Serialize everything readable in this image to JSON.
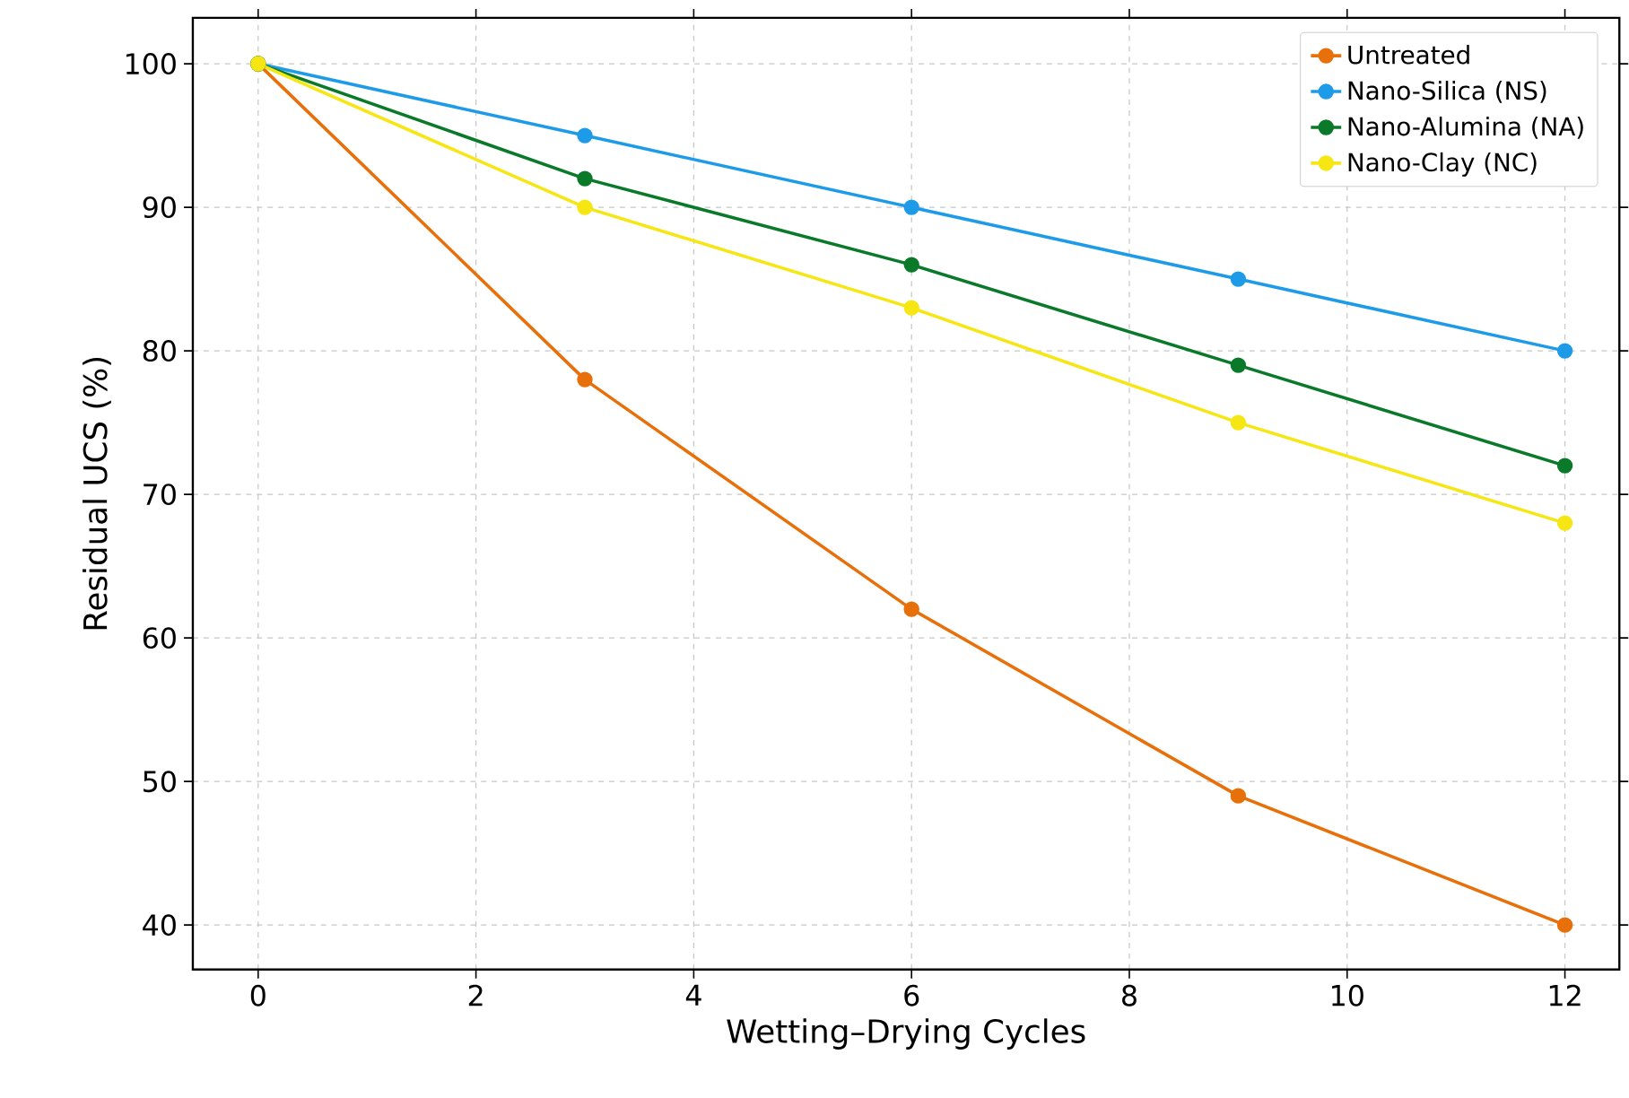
{
  "chart_data": {
    "type": "line",
    "xlabel": "Wetting–Drying Cycles",
    "ylabel": "Residual UCS (%)",
    "x": [
      0,
      3,
      6,
      9,
      12
    ],
    "series": [
      {
        "name": "Untreated",
        "color": "#e8700a",
        "values": [
          100,
          78,
          62,
          49,
          40
        ]
      },
      {
        "name": "Nano-Silica (NS)",
        "color": "#1e9be8",
        "values": [
          100,
          95,
          90,
          85,
          80
        ]
      },
      {
        "name": "Nano-Alumina (NA)",
        "color": "#0a7a2a",
        "values": [
          100,
          92,
          86,
          79,
          72
        ]
      },
      {
        "name": "Nano-Clay (NC)",
        "color": "#f5e614",
        "values": [
          100,
          90,
          83,
          75,
          68
        ]
      }
    ],
    "xlim": [
      -0.6,
      12.5
    ],
    "ylim": [
      36.9,
      103.2
    ],
    "xticks": [
      0,
      2,
      4,
      6,
      8,
      10,
      12
    ],
    "yticks": [
      40,
      50,
      60,
      70,
      80,
      90,
      100
    ],
    "grid": true,
    "legend": "top right",
    "marker": "circle",
    "line_style": "solid"
  }
}
